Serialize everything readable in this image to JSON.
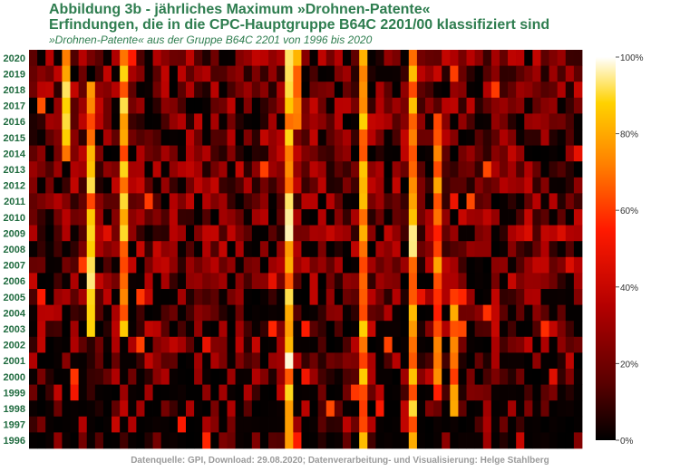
{
  "header": {
    "title_line1": "Abbildung 3b - jährliches Maximum »Drohnen-Patente«",
    "title_line2": "Erfindungen, die in die CPC-Hauptgruppe B64C 2201/00 klassifiziert sind",
    "subtitle": "»Drohnen-Patente« aus der Gruppe B64C 2201 von 1996 bis 2020"
  },
  "footer": {
    "source": "Datenquelle: GPI, Download: 29.08.2020; Datenverarbeitung- und Visualisierung: Helge Stahlberg"
  },
  "chart_data": {
    "type": "heatmap",
    "xlabel": "",
    "ylabel": "",
    "years": [
      "2020",
      "2019",
      "2018",
      "2017",
      "2016",
      "2015",
      "2014",
      "2013",
      "2012",
      "2011",
      "2010",
      "2009",
      "2008",
      "2007",
      "2006",
      "2005",
      "2004",
      "2003",
      "2002",
      "2001",
      "2000",
      "1999",
      "1998",
      "1997",
      "1996"
    ],
    "num_columns": 67,
    "colorbar": {
      "ticks": [
        "100%",
        "80%",
        "60%",
        "40%",
        "20%",
        "0%"
      ],
      "range": [
        0,
        100
      ],
      "colorscale": [
        "#000000",
        "#5a0000",
        "#b40000",
        "#ff1a00",
        "#ff8000",
        "#ffd200",
        "#ffffff"
      ]
    },
    "bright_columns": [
      {
        "col": 4,
        "peak": 100,
        "years": "2014-2020"
      },
      {
        "col": 7,
        "peak": 95,
        "years": "2003-2018"
      },
      {
        "col": 11,
        "peak": 92,
        "years": "2003-2020"
      },
      {
        "col": 31,
        "peak": 100,
        "years": "1996-2020"
      },
      {
        "col": 32,
        "peak": 100,
        "years": "2016-2020"
      },
      {
        "col": 40,
        "peak": 88,
        "years": "1996-2020"
      },
      {
        "col": 46,
        "peak": 95,
        "years": "1996-2020"
      },
      {
        "col": 49,
        "peak": 80,
        "years": "2000-2016"
      },
      {
        "col": 51,
        "peak": 85,
        "years": "1998-2005"
      }
    ]
  }
}
